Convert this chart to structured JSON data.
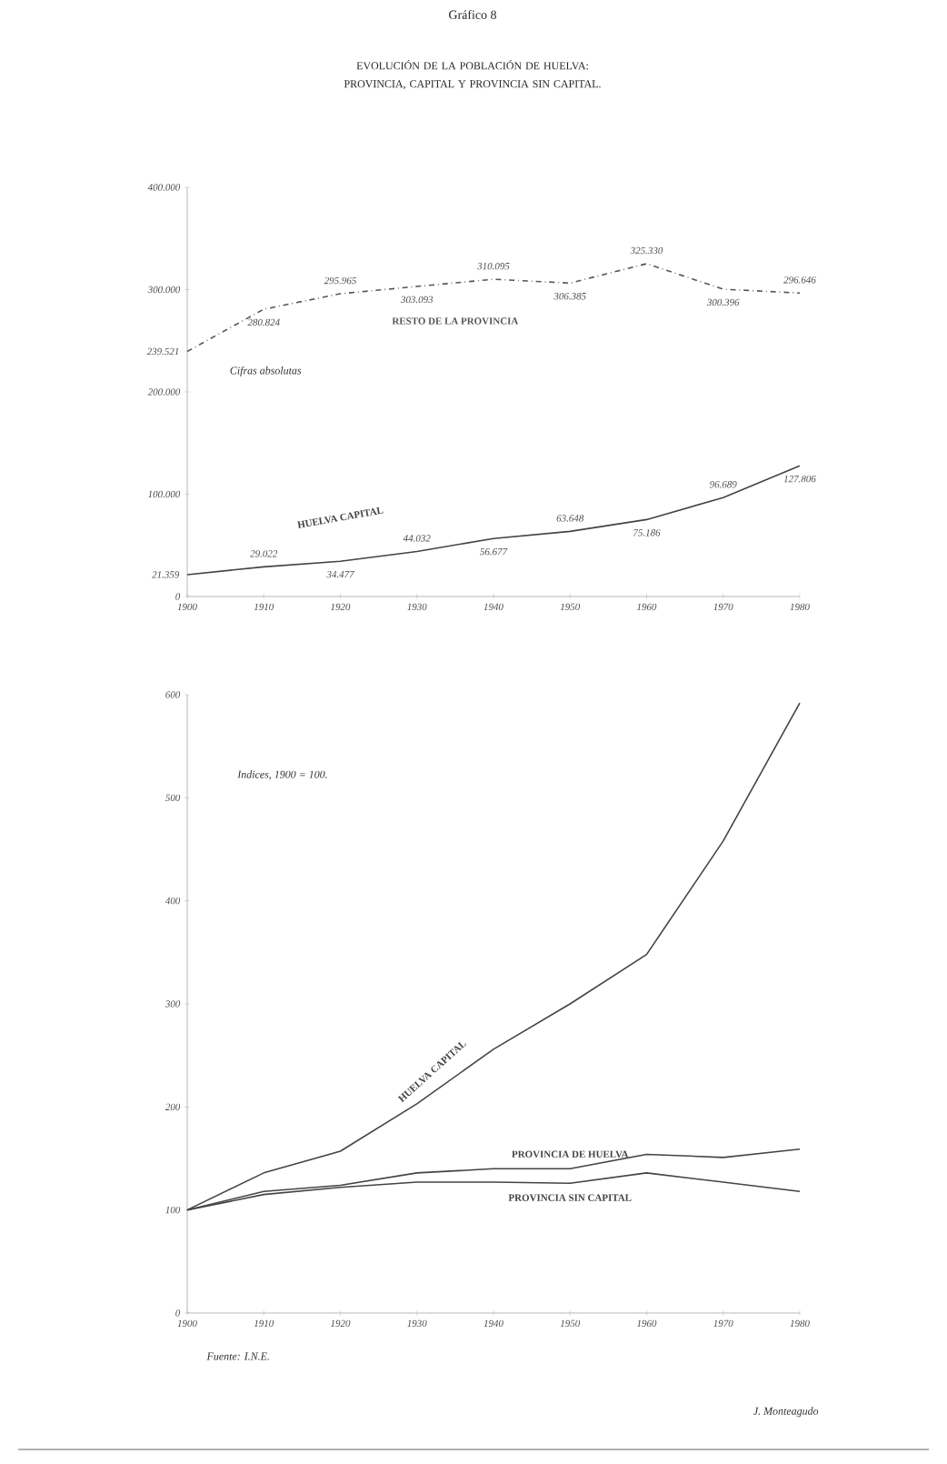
{
  "chart_data": [
    {
      "type": "line",
      "title": "Gráfico 8",
      "subtitle": "EVOLUCIÓN DE LA POBLACIÓN DE HUELVA: PROVINCIA, CAPITAL Y PROVINCIA SIN CAPITAL.",
      "x": [
        1900,
        1910,
        1920,
        1930,
        1940,
        1950,
        1960,
        1970,
        1980
      ],
      "series": [
        {
          "name": "RESTO DE LA PROVINCIA",
          "color": "#555555",
          "line_style": "dashed",
          "values": [
            239521,
            280824,
            295965,
            303093,
            310095,
            306385,
            325330,
            300396,
            296646
          ],
          "value_labels": [
            "239.521",
            "280.824",
            "295.965",
            "303.093",
            "310.095",
            "306.385",
            "325.330",
            "300.396",
            "296.646"
          ]
        },
        {
          "name": "HUELVA CAPITAL",
          "color": "#444444",
          "line_style": "solid",
          "values": [
            21359,
            29022,
            34477,
            44032,
            56677,
            63648,
            75186,
            96689,
            127806
          ],
          "value_labels": [
            "21.359",
            "29.022",
            "34.477",
            "44.032",
            "56.677",
            "63.648",
            "75.186",
            "96.689",
            "127.806"
          ]
        }
      ],
      "xlim": [
        1900,
        1980
      ],
      "xticks": [
        1900,
        1910,
        1920,
        1930,
        1940,
        1950,
        1960,
        1970,
        1980
      ],
      "ylim": [
        0,
        400000
      ],
      "yticks": [
        0,
        {
          "value": 100000,
          "label": "100.000"
        },
        {
          "value": 200000,
          "label": "200.000"
        },
        {
          "value": 300000,
          "label": "300.000"
        },
        {
          "value": 400000,
          "label": "400.000"
        }
      ],
      "annotations": [
        "Cifras absolutas"
      ],
      "grid": false,
      "legend": false
    },
    {
      "type": "line",
      "x": [
        1900,
        1910,
        1920,
        1930,
        1940,
        1950,
        1960,
        1970,
        1980
      ],
      "series": [
        {
          "name": "HUELVA CAPITAL",
          "color": "#444444",
          "values": [
            100,
            136,
            157,
            203,
            256,
            300,
            348,
            458,
            592
          ]
        },
        {
          "name": "PROVINCIA DE HUELVA",
          "color": "#444444",
          "values": [
            100,
            118,
            124,
            136,
            140,
            140,
            154,
            151,
            159
          ]
        },
        {
          "name": "PROVINCIA SIN CAPITAL",
          "color": "#444444",
          "values": [
            100,
            115,
            122,
            127,
            127,
            126,
            136,
            127,
            118
          ]
        }
      ],
      "xlim": [
        1900,
        1980
      ],
      "xticks": [
        1900,
        1910,
        1920,
        1930,
        1940,
        1950,
        1960,
        1970,
        1980
      ],
      "ylim": [
        0,
        600
      ],
      "yticks": [
        0,
        100,
        200,
        300,
        400,
        500,
        600
      ],
      "annotations": [
        "Indices, 1900 = 100.",
        "Fuente: I.N.E.",
        "J. Monteagudo"
      ],
      "grid": false,
      "legend": false
    }
  ]
}
